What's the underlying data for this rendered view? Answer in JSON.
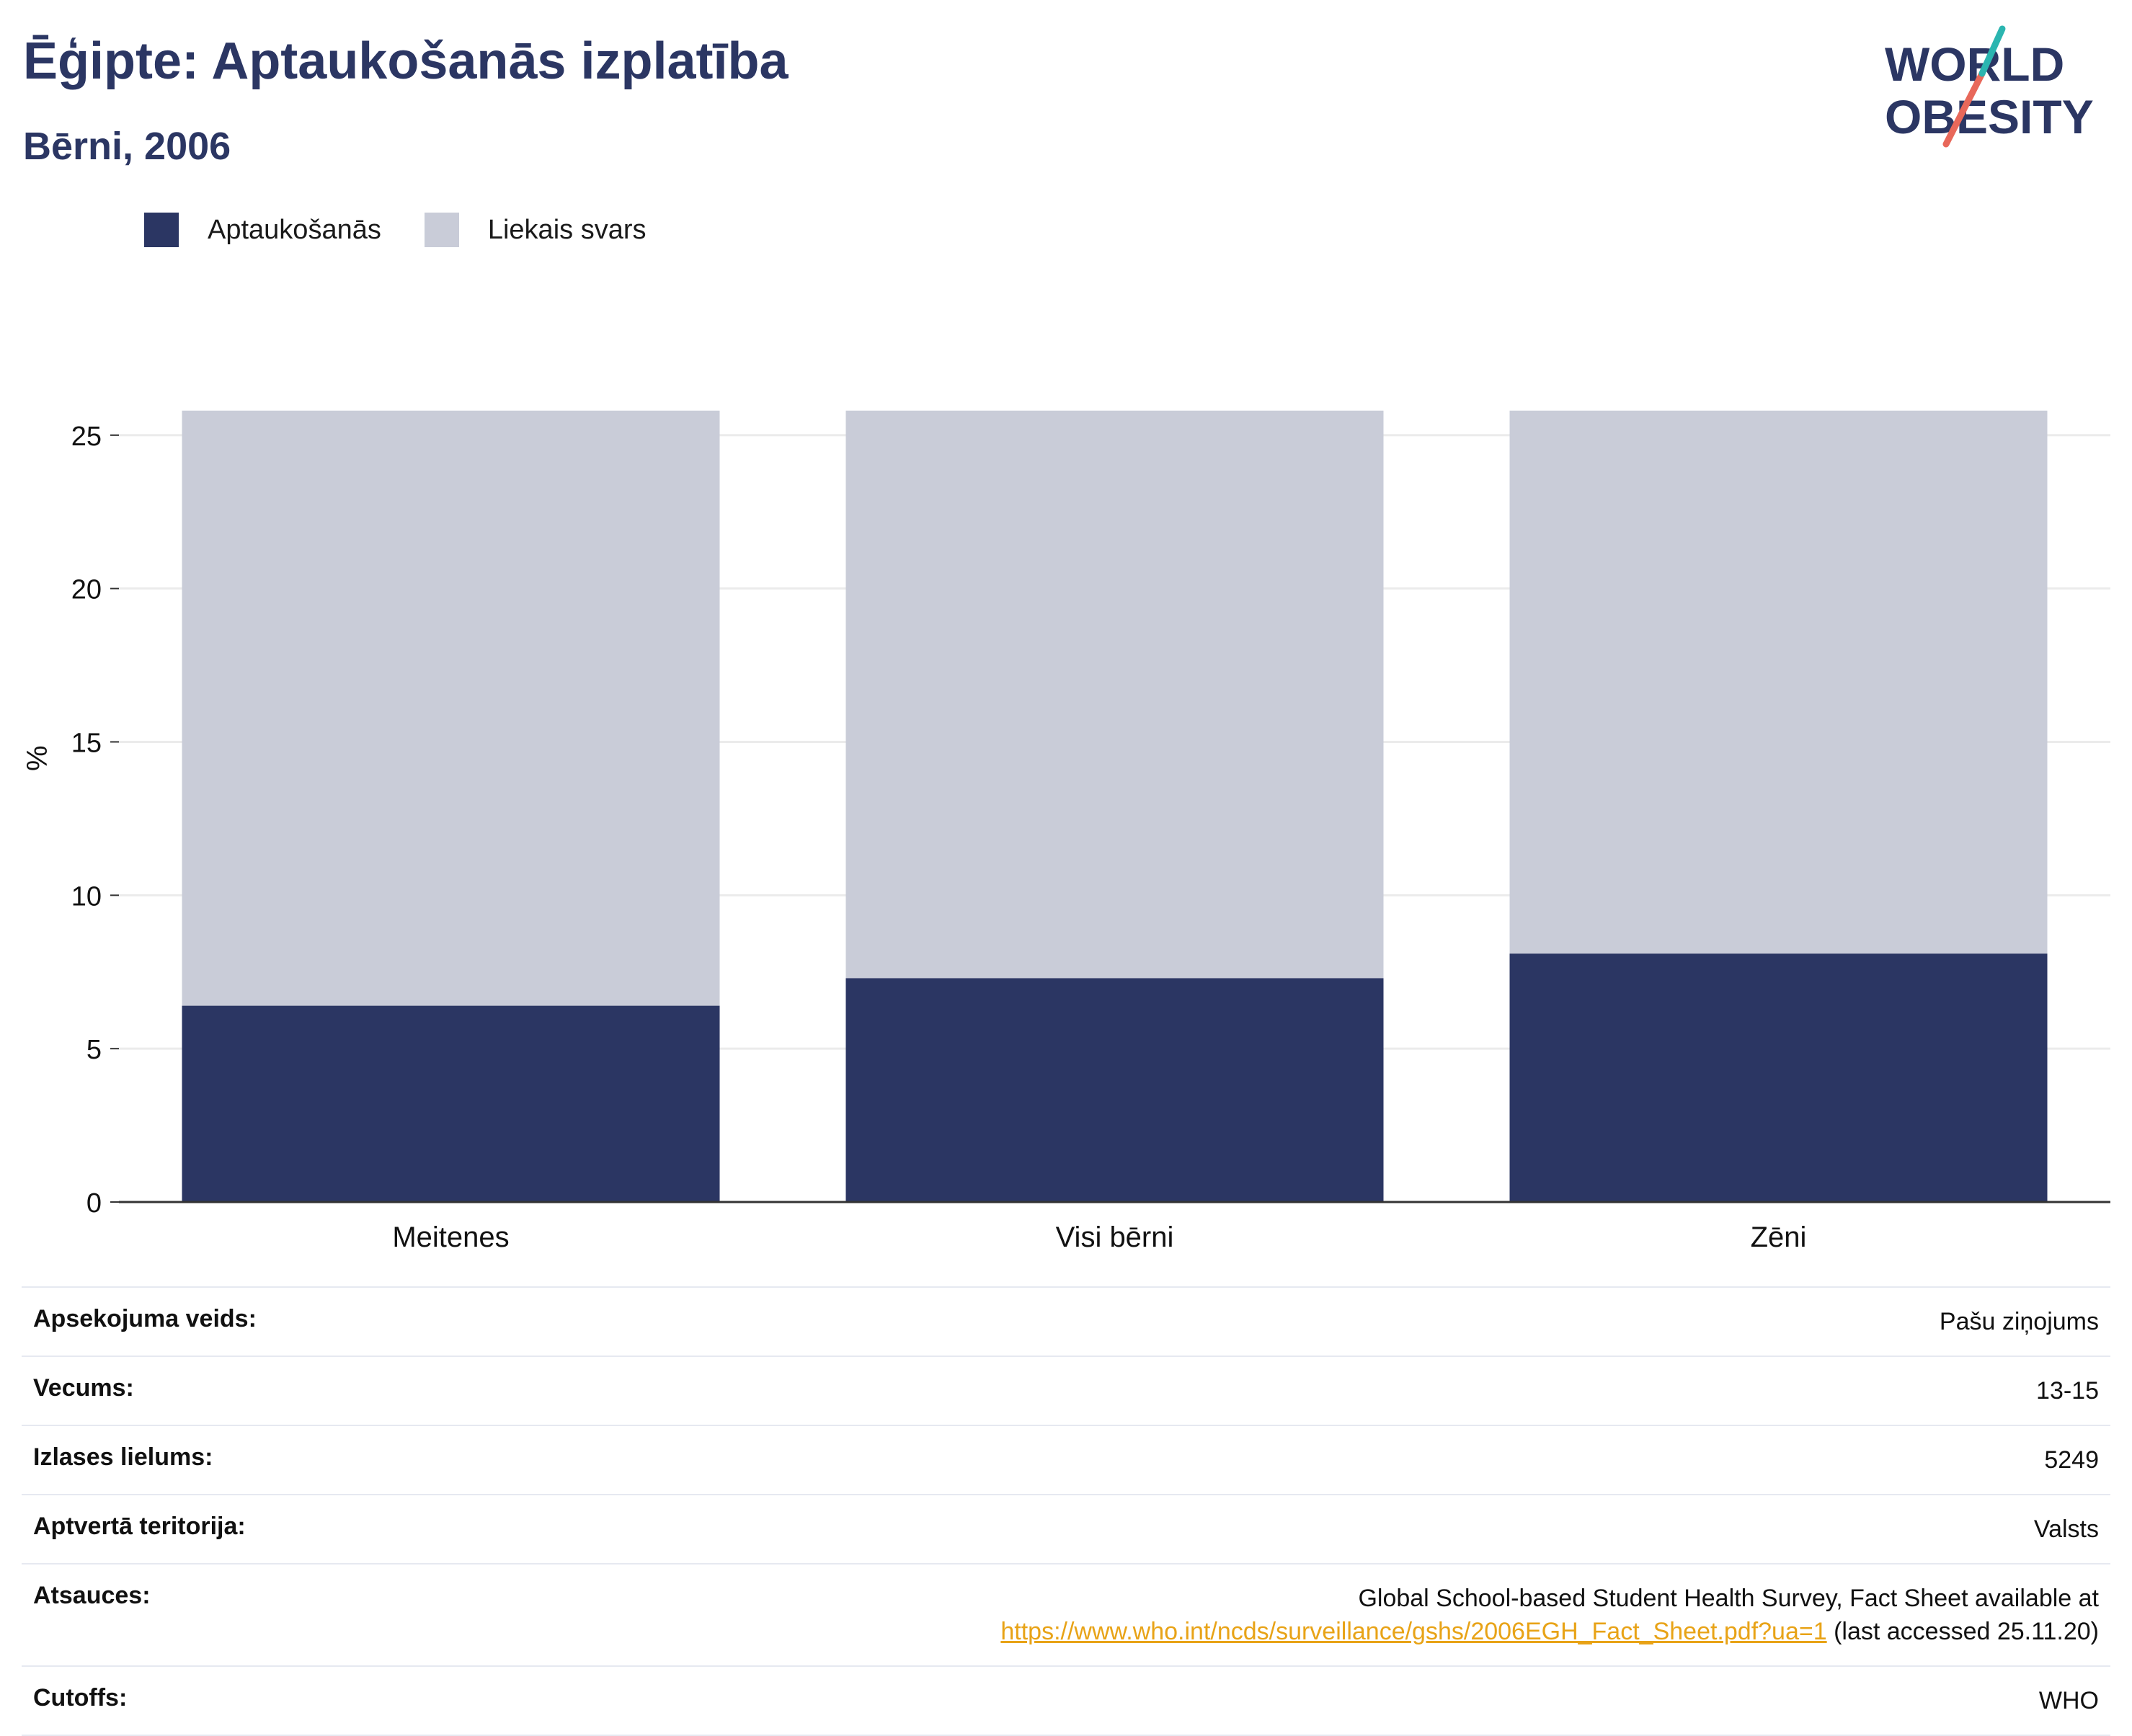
{
  "header": {
    "title": "Ēģipte: Aptaukošanās izplatība",
    "subtitle": "Bērni, 2006"
  },
  "logo": {
    "line1": "WORLD",
    "line2": "OBESITY",
    "colors": {
      "text": "#2b3663",
      "slash_top": "#2bb5b0",
      "slash_bottom": "#e8685a"
    }
  },
  "colors": {
    "obesity": "#2b3663",
    "overweight": "#c9ccd8",
    "grid": "#ebebeb",
    "axis": "#333333"
  },
  "chart_data": {
    "type": "bar",
    "stacked": true,
    "categories": [
      "Meitenes",
      "Visi bērni",
      "Zēni"
    ],
    "series": [
      {
        "name": "Aptaukošanās",
        "values": [
          6.4,
          7.3,
          8.1
        ]
      },
      {
        "name": "Liekais svars",
        "values": [
          19.4,
          18.5,
          17.7
        ]
      }
    ],
    "title": "",
    "xlabel": "",
    "ylabel": "%",
    "ylim": [
      0,
      26.5
    ],
    "yticks": [
      0,
      5,
      10,
      15,
      20,
      25
    ],
    "grid": true,
    "legend_position": "top-left"
  },
  "info": {
    "rows": [
      {
        "label": "Apsekojuma veids:",
        "value": "Pašu ziņojums"
      },
      {
        "label": "Vecums:",
        "value": "13-15"
      },
      {
        "label": "Izlases lielums:",
        "value": "5249"
      },
      {
        "label": "Aptvertā teritorija:",
        "value": "Valsts"
      }
    ],
    "references": {
      "label": "Atsauces:",
      "line1": "Global School-based Student Health Survey, Fact Sheet available at",
      "link": "https://www.who.int/ncds/surveillance/gshs/2006EGH_Fact_Sheet.pdf?ua=1",
      "suffix": " (last accessed 25.11.20)"
    },
    "cutoffs": {
      "label": "Cutoffs:",
      "value": "WHO"
    }
  }
}
